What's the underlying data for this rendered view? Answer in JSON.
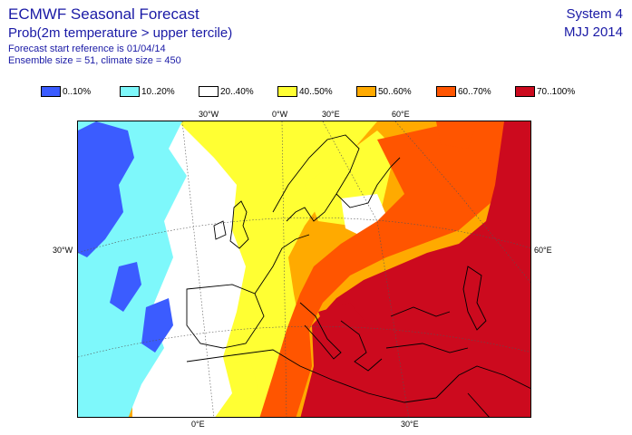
{
  "header": {
    "title": "ECMWF Seasonal Forecast",
    "subtitle": "Prob(2m temperature > upper tercile)",
    "start_reference": "Forecast start reference is 01/04/14",
    "ensemble": "Ensemble size = 51, climate size = 450",
    "system": "System 4",
    "period": "MJJ 2014"
  },
  "legend": [
    {
      "label": "0..10%",
      "color": "#3b5cff"
    },
    {
      "label": "10..20%",
      "color": "#7ef8fb"
    },
    {
      "label": "20..40%",
      "color": "#ffffff"
    },
    {
      "label": "40..50%",
      "color": "#ffff33"
    },
    {
      "label": "50..60%",
      "color": "#ffaa00"
    },
    {
      "label": "60..70%",
      "color": "#ff5500"
    },
    {
      "label": "70..100%",
      "color": "#cc0a1e"
    }
  ],
  "coords": {
    "top": [
      "30°W",
      "0°W",
      "30°E",
      "60°E"
    ],
    "left": "30°W",
    "right": "60°E",
    "bottom": [
      "0°E",
      "30°E"
    ]
  }
}
